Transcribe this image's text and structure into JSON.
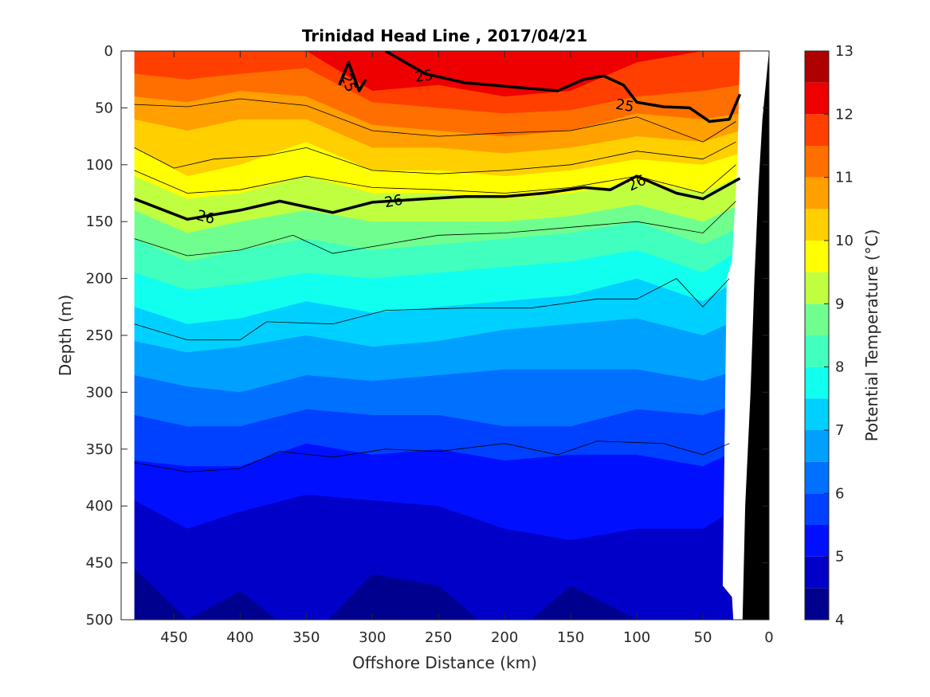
{
  "chart_data": {
    "type": "heatmap",
    "title": "Trinidad Head Line , 2017/04/21",
    "xlabel": "Offshore Distance (km)",
    "ylabel": "Depth (m)",
    "colorbar_label": "Potential Temperature (°C)",
    "xlim": [
      490,
      0
    ],
    "ylim": [
      500,
      0
    ],
    "x_ticks": [
      "450",
      "400",
      "350",
      "300",
      "250",
      "200",
      "150",
      "100",
      "50",
      "0"
    ],
    "y_ticks": [
      "0",
      "50",
      "100",
      "150",
      "200",
      "250",
      "300",
      "350",
      "400",
      "450",
      "500"
    ],
    "colorbar_ticks": [
      "4",
      "5",
      "6",
      "7",
      "8",
      "9",
      "10",
      "11",
      "12",
      "13"
    ],
    "color_levels": [
      {
        "min": 4.0,
        "max": 4.5,
        "color": "#00008F"
      },
      {
        "min": 4.5,
        "max": 5.0,
        "color": "#0000C8"
      },
      {
        "min": 5.0,
        "max": 5.5,
        "color": "#0010FF"
      },
      {
        "min": 5.5,
        "max": 6.0,
        "color": "#0040FF"
      },
      {
        "min": 6.0,
        "max": 6.5,
        "color": "#0070FF"
      },
      {
        "min": 6.5,
        "max": 7.0,
        "color": "#00A0FF"
      },
      {
        "min": 7.0,
        "max": 7.5,
        "color": "#00D0FF"
      },
      {
        "min": 7.5,
        "max": 8.0,
        "color": "#10FFEF"
      },
      {
        "min": 8.0,
        "max": 8.5,
        "color": "#40FFBF"
      },
      {
        "min": 8.5,
        "max": 9.0,
        "color": "#70FF8F"
      },
      {
        "min": 9.0,
        "max": 9.5,
        "color": "#BFFF40"
      },
      {
        "min": 9.5,
        "max": 10.0,
        "color": "#FFFF00"
      },
      {
        "min": 10.0,
        "max": 10.5,
        "color": "#FFCF00"
      },
      {
        "min": 10.5,
        "max": 11.0,
        "color": "#FF9F00"
      },
      {
        "min": 11.0,
        "max": 11.5,
        "color": "#FF6F00"
      },
      {
        "min": 11.5,
        "max": 12.0,
        "color": "#FF3F00"
      },
      {
        "min": 12.0,
        "max": 12.5,
        "color": "#EF0000"
      },
      {
        "min": 12.5,
        "max": 13.0,
        "color": "#AF0000"
      }
    ],
    "x_nodes": [
      480,
      440,
      400,
      350,
      300,
      250,
      200,
      150,
      100,
      50,
      22
    ],
    "isotherm_depths": [
      {
        "t": 12.5,
        "depths": [
          -5,
          -5,
          -5,
          -5,
          -5,
          -5,
          -5,
          -5,
          -5,
          -5,
          -5
        ]
      },
      {
        "t": 12.0,
        "depths": [
          -5,
          -5,
          -5,
          0,
          35,
          30,
          40,
          35,
          10,
          0,
          -5
        ]
      },
      {
        "t": 11.5,
        "depths": [
          20,
          25,
          20,
          15,
          45,
          50,
          55,
          52,
          40,
          35,
          30
        ]
      },
      {
        "t": 11.0,
        "depths": [
          40,
          45,
          35,
          40,
          65,
          70,
          75,
          70,
          55,
          60,
          55
        ]
      },
      {
        "t": 10.5,
        "depths": [
          60,
          70,
          60,
          60,
          85,
          85,
          90,
          85,
          75,
          80,
          70
        ]
      },
      {
        "t": 10.0,
        "depths": [
          85,
          110,
          100,
          80,
          105,
          105,
          110,
          105,
          95,
          100,
          90
        ]
      },
      {
        "t": 9.5,
        "depths": [
          110,
          130,
          125,
          110,
          125,
          125,
          130,
          125,
          115,
          125,
          110
        ]
      },
      {
        "t": 9.0,
        "depths": [
          140,
          160,
          150,
          140,
          150,
          150,
          150,
          145,
          135,
          150,
          135
        ]
      },
      {
        "t": 8.5,
        "depths": [
          165,
          185,
          175,
          165,
          175,
          170,
          165,
          160,
          150,
          170,
          155
        ]
      },
      {
        "t": 8.0,
        "depths": [
          195,
          210,
          205,
          195,
          200,
          195,
          190,
          185,
          175,
          195,
          175
        ]
      },
      {
        "t": 7.5,
        "depths": [
          225,
          240,
          235,
          220,
          230,
          225,
          220,
          215,
          200,
          220,
          200
        ]
      },
      {
        "t": 7.0,
        "depths": [
          255,
          265,
          260,
          250,
          260,
          255,
          245,
          240,
          235,
          250,
          235
        ]
      },
      {
        "t": 6.5,
        "depths": [
          285,
          295,
          300,
          285,
          290,
          285,
          280,
          280,
          280,
          290,
          280
        ]
      },
      {
        "t": 6.0,
        "depths": [
          320,
          330,
          330,
          315,
          320,
          320,
          330,
          330,
          315,
          320,
          310
        ]
      },
      {
        "t": 5.5,
        "depths": [
          360,
          365,
          365,
          345,
          355,
          350,
          360,
          355,
          355,
          365,
          350
        ]
      },
      {
        "t": 5.0,
        "depths": [
          395,
          420,
          405,
          390,
          395,
          400,
          420,
          430,
          420,
          420,
          400
        ]
      },
      {
        "t": 4.5,
        "depths": [
          455,
          500,
          475,
          520,
          460,
          470,
          520,
          470,
          500,
          520,
          520
        ]
      }
    ],
    "thin_contours": [
      [
        [
          480,
          47
        ],
        [
          440,
          49
        ],
        [
          400,
          42
        ],
        [
          350,
          48
        ],
        [
          300,
          70
        ],
        [
          250,
          75
        ],
        [
          200,
          72
        ],
        [
          150,
          70
        ],
        [
          100,
          58
        ],
        [
          50,
          80
        ],
        [
          25,
          62
        ]
      ],
      [
        [
          480,
          85
        ],
        [
          450,
          103
        ],
        [
          420,
          95
        ],
        [
          380,
          92
        ],
        [
          350,
          85
        ],
        [
          300,
          105
        ],
        [
          250,
          108
        ],
        [
          200,
          105
        ],
        [
          150,
          100
        ],
        [
          100,
          88
        ],
        [
          50,
          95
        ],
        [
          25,
          80
        ]
      ],
      [
        [
          480,
          105
        ],
        [
          440,
          125
        ],
        [
          400,
          122
        ],
        [
          350,
          110
        ],
        [
          300,
          120
        ],
        [
          250,
          122
        ],
        [
          200,
          125
        ],
        [
          150,
          120
        ],
        [
          100,
          110
        ],
        [
          50,
          125
        ],
        [
          25,
          100
        ]
      ],
      [
        [
          480,
          165
        ],
        [
          440,
          180
        ],
        [
          400,
          175
        ],
        [
          360,
          162
        ],
        [
          330,
          178
        ],
        [
          280,
          168
        ],
        [
          250,
          162
        ],
        [
          200,
          160
        ],
        [
          150,
          155
        ],
        [
          100,
          150
        ],
        [
          50,
          160
        ],
        [
          25,
          132
        ]
      ],
      [
        [
          480,
          240
        ],
        [
          440,
          254
        ],
        [
          400,
          254
        ],
        [
          380,
          238
        ],
        [
          330,
          240
        ],
        [
          290,
          228
        ],
        [
          230,
          226
        ],
        [
          180,
          226
        ],
        [
          130,
          218
        ],
        [
          100,
          218
        ],
        [
          70,
          200
        ],
        [
          50,
          225
        ],
        [
          30,
          200
        ]
      ],
      [
        [
          480,
          362
        ],
        [
          440,
          370
        ],
        [
          400,
          367
        ],
        [
          370,
          352
        ],
        [
          330,
          357
        ],
        [
          290,
          350
        ],
        [
          250,
          352
        ],
        [
          200,
          345
        ],
        [
          160,
          355
        ],
        [
          130,
          343
        ],
        [
          80,
          345
        ],
        [
          50,
          355
        ],
        [
          30,
          345
        ]
      ]
    ],
    "isopycnal_25": [
      [
        [
          325,
          30
        ],
        [
          318,
          10
        ],
        [
          310,
          35
        ],
        [
          305,
          25
        ]
      ],
      [
        [
          290,
          0
        ],
        [
          260,
          20
        ],
        [
          230,
          28
        ],
        [
          210,
          30
        ],
        [
          190,
          32
        ],
        [
          160,
          35
        ],
        [
          140,
          25
        ],
        [
          125,
          22
        ],
        [
          110,
          30
        ],
        [
          100,
          45
        ],
        [
          80,
          49
        ],
        [
          60,
          50
        ],
        [
          45,
          62
        ],
        [
          30,
          60
        ],
        [
          22,
          38
        ]
      ]
    ],
    "isopycnal_26": [
      [
        480,
        130
      ],
      [
        440,
        148
      ],
      [
        400,
        140
      ],
      [
        370,
        132
      ],
      [
        330,
        142
      ],
      [
        300,
        133
      ],
      [
        260,
        130
      ],
      [
        230,
        128
      ],
      [
        200,
        128
      ],
      [
        170,
        125
      ],
      [
        140,
        120
      ],
      [
        120,
        122
      ],
      [
        100,
        110
      ],
      [
        70,
        125
      ],
      [
        50,
        130
      ],
      [
        22,
        112
      ]
    ],
    "contour_labels": [
      {
        "text": "25",
        "x": 318,
        "y": 28,
        "angle": 70
      },
      {
        "text": "25",
        "x": 261,
        "y": 22,
        "angle": -8
      },
      {
        "text": "25",
        "x": 109,
        "y": 48,
        "angle": 10
      },
      {
        "text": "26",
        "x": 426,
        "y": 146,
        "angle": 15
      },
      {
        "text": "26",
        "x": 284,
        "y": 132,
        "angle": -10
      },
      {
        "text": "26",
        "x": 100,
        "y": 116,
        "angle": -25
      }
    ],
    "bathymetry": [
      [
        27,
        500
      ],
      [
        20,
        500
      ],
      [
        18,
        400
      ],
      [
        14,
        300
      ],
      [
        11,
        200
      ],
      [
        8,
        120
      ],
      [
        5,
        60
      ],
      [
        0,
        0
      ],
      [
        0,
        500
      ]
    ],
    "no_data_region": [
      [
        0,
        0
      ],
      [
        0,
        500
      ],
      [
        27,
        500
      ],
      [
        28,
        480
      ],
      [
        35,
        470
      ],
      [
        32,
        200
      ],
      [
        28,
        185
      ],
      [
        24,
        100
      ],
      [
        22,
        0
      ]
    ],
    "left_margin_no_data": 490
  }
}
